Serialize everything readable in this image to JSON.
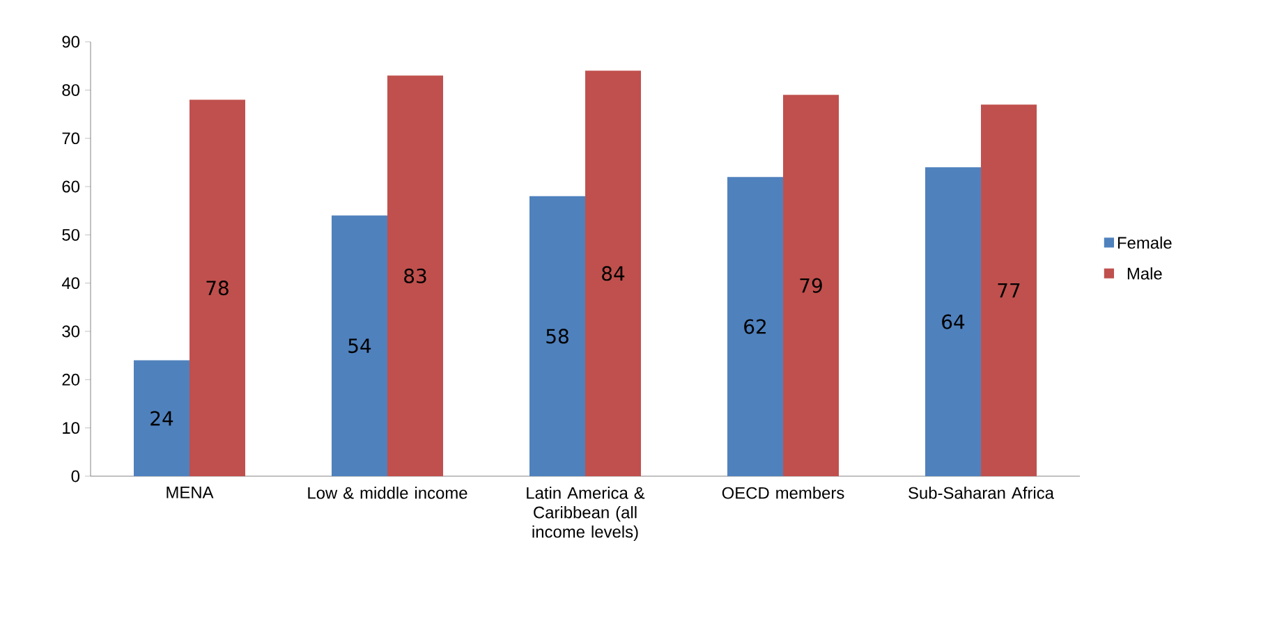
{
  "chart_data": {
    "type": "bar",
    "categories": [
      "MENA",
      "Low & middle income",
      "Latin America & Caribbean (all income levels)",
      "OECD members",
      "Sub-Saharan Africa"
    ],
    "series": [
      {
        "name": "Female",
        "color": "#4f81bd",
        "values": [
          24,
          54,
          58,
          62,
          64
        ]
      },
      {
        "name": "Male",
        "color": "#c0504d",
        "values": [
          78,
          83,
          84,
          79,
          77
        ]
      }
    ],
    "ylim": [
      0,
      90
    ],
    "yticks": [
      0,
      10,
      20,
      30,
      40,
      50,
      60,
      70,
      80,
      90
    ],
    "data_labels": true,
    "legend": "right"
  }
}
